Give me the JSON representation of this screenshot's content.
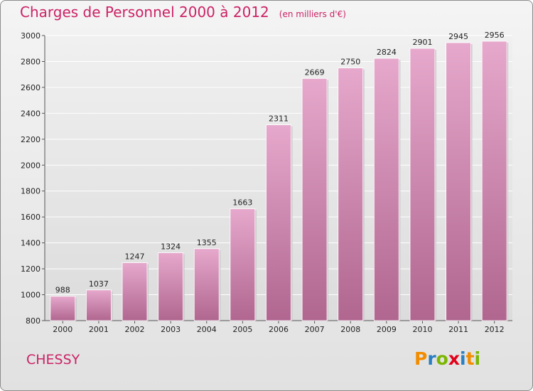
{
  "header": {
    "title": "Charges de Personnel 2000 à 2012",
    "unit": "(en milliers d'€)"
  },
  "footer": {
    "commune": "CHESSY",
    "logo_letters": [
      "P",
      "r",
      "o",
      "x",
      "i",
      "t",
      "i"
    ]
  },
  "colors": {
    "title": "#cc2266",
    "bar_top": "#e6a8cc",
    "bar_bottom": "#b0668f",
    "logo": [
      "#f28c00",
      "#2a7fc1",
      "#7bb600",
      "#e2001a",
      "#2a7fc1",
      "#f28c00",
      "#7bb600"
    ]
  },
  "chart_data": {
    "type": "bar",
    "title": "Charges de Personnel 2000 à 2012",
    "subtitle": "(en milliers d'€)",
    "categories": [
      "2000",
      "2001",
      "2002",
      "2003",
      "2004",
      "2005",
      "2006",
      "2007",
      "2008",
      "2009",
      "2010",
      "2011",
      "2012"
    ],
    "values": [
      988,
      1037,
      1247,
      1324,
      1355,
      1663,
      2311,
      2669,
      2750,
      2824,
      2901,
      2945,
      2956
    ],
    "ylim": [
      800,
      3000
    ],
    "yticks": [
      800,
      1000,
      1200,
      1400,
      1600,
      1800,
      2000,
      2200,
      2400,
      2600,
      2800,
      3000
    ],
    "grid": true,
    "xlabel": "",
    "ylabel": ""
  }
}
